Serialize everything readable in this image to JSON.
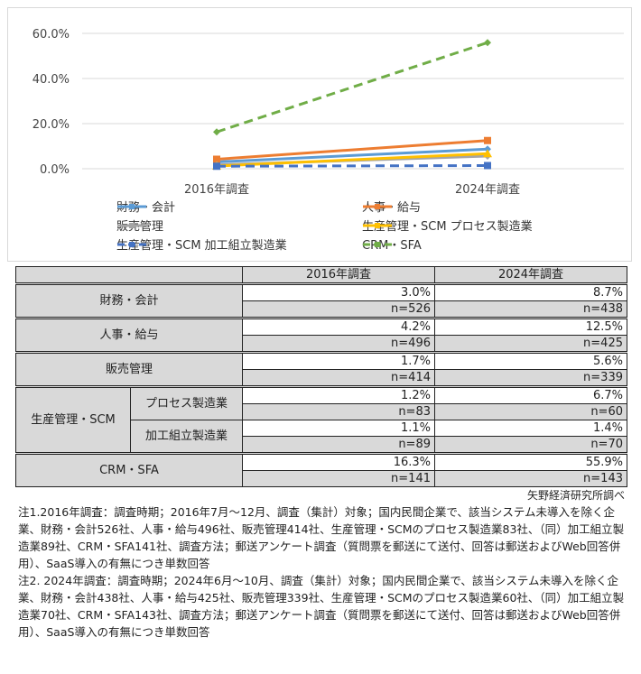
{
  "chart_data": {
    "type": "line",
    "categories": [
      "2016年調査",
      "2024年調査"
    ],
    "ylim": [
      0,
      60
    ],
    "yticks": [
      "0.0%",
      "20.0%",
      "40.0%",
      "60.0%"
    ],
    "ytick_values": [
      0,
      20,
      40,
      60
    ],
    "grid": true,
    "legend_position": "bottom",
    "series": [
      {
        "name": "財務・会計",
        "values": [
          3.0,
          8.7
        ],
        "color": "#5b9bd5",
        "dash": false,
        "marker": "diamond"
      },
      {
        "name": "人事・給与",
        "values": [
          4.2,
          12.5
        ],
        "color": "#ed7d31",
        "dash": false,
        "marker": "square"
      },
      {
        "name": "販売管理",
        "values": [
          1.7,
          5.6
        ],
        "color": "#a5a5a5",
        "dash": false,
        "marker": "diamond"
      },
      {
        "name": "生産管理・SCM プロセス製造業",
        "values": [
          1.2,
          6.7
        ],
        "color": "#ffc000",
        "dash": false,
        "marker": "triangle"
      },
      {
        "name": "生産管理・SCM 加工組立製造業",
        "values": [
          1.1,
          1.4
        ],
        "color": "#4472c4",
        "dash": true,
        "marker": "square"
      },
      {
        "name": "CRM・SFA",
        "values": [
          16.3,
          55.9
        ],
        "color": "#70ad47",
        "dash": true,
        "marker": "diamond"
      }
    ]
  },
  "table": {
    "headers": [
      "2016年調査",
      "2024年調査"
    ],
    "rows": {
      "fin": {
        "label": "財務・会計",
        "v": [
          "3.0%",
          "8.7%"
        ],
        "n": [
          "n=526",
          "n=438"
        ]
      },
      "hr": {
        "label": "人事・給与",
        "v": [
          "4.2%",
          "12.5%"
        ],
        "n": [
          "n=496",
          "n=425"
        ]
      },
      "sales": {
        "label": "販売管理",
        "v": [
          "1.7%",
          "5.6%"
        ],
        "n": [
          "n=414",
          "n=339"
        ]
      },
      "scm_label": "生産管理・SCM",
      "proc": {
        "label": "プロセス製造業",
        "v": [
          "1.2%",
          "6.7%"
        ],
        "n": [
          "n=83",
          "n=60"
        ]
      },
      "asm": {
        "label": "加工組立製造業",
        "v": [
          "1.1%",
          "1.4%"
        ],
        "n": [
          "n=89",
          "n=70"
        ]
      },
      "crm": {
        "label": "CRM・SFA",
        "v": [
          "16.3%",
          "55.9%"
        ],
        "n": [
          "n=141",
          "n=143"
        ]
      }
    }
  },
  "source": "矢野経済研究所調べ",
  "notes": [
    "注1.2016年調査：調査時期；2016年7月～12月、調査（集計）対象；国内民間企業で、該当システム未導入を除く企業、財務・会計526社、人事・給与496社、販売管理414社、生産管理・SCMのプロセス製造業83社、（同）加工組立製造業89社、CRM・SFA141社、調査方法；郵送アンケート調査（質問票を郵送にて送付、回答は郵送およびWeb回答併用）、SaaS導入の有無につき単数回答",
    "注2. 2024年調査：調査時期；2024年6月～10月、調査（集計）対象；国内民間企業で、該当システム未導入を除く企業、財務・会計438社、人事・給与425社、販売管理339社、生産管理・SCMのプロセス製造業60社、（同）加工組立製造業70社、CRM・SFA143社、調査方法；郵送アンケート調査（質問票を郵送にて送付、回答は郵送およびWeb回答併用）、SaaS導入の有無につき単数回答"
  ]
}
